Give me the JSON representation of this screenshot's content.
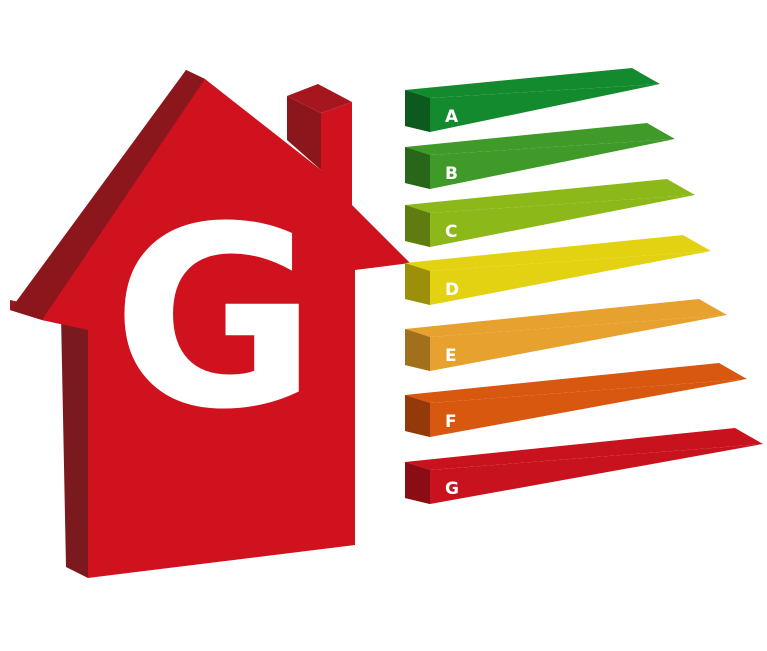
{
  "house": {
    "rating_letter": "G",
    "colors": {
      "front": "#d0121f",
      "side": "#7a1a1e",
      "top": "#a5161f"
    }
  },
  "scale": {
    "bands": [
      {
        "letter": "A",
        "color": "#148a2e",
        "shade": "#0c5a1d"
      },
      {
        "letter": "B",
        "color": "#3f9a2a",
        "shade": "#28661a"
      },
      {
        "letter": "C",
        "color": "#8cb81a",
        "shade": "#5e7c10"
      },
      {
        "letter": "D",
        "color": "#e2d212",
        "shade": "#9c900a"
      },
      {
        "letter": "E",
        "color": "#e6a12e",
        "shade": "#a1701c"
      },
      {
        "letter": "F",
        "color": "#d9580f",
        "shade": "#93390a"
      },
      {
        "letter": "G",
        "color": "#c8131f",
        "shade": "#8a0d15"
      }
    ]
  }
}
